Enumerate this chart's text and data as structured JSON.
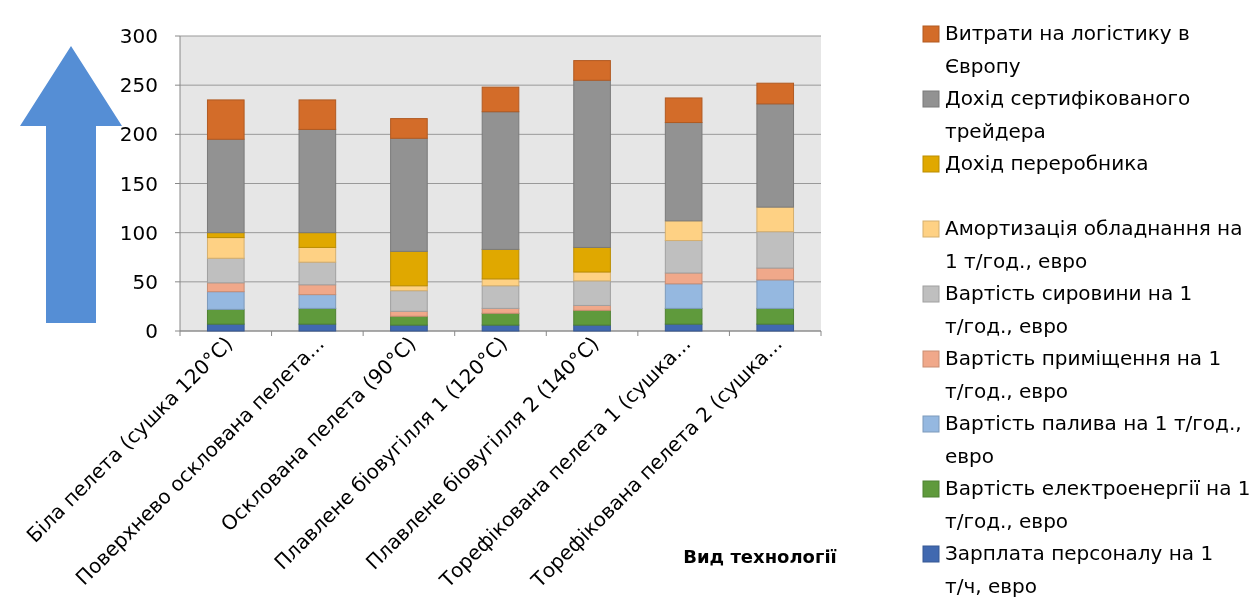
{
  "chart_data": {
    "type": "bar",
    "stacked": true,
    "xlabel": "Вид технології",
    "categories": [
      "Біла пелета (сушка 120°C)",
      "Поверхнево осклована пелета...",
      "Осклована пелета (90°C)",
      "Плавлене біовугілля 1 (120°C)",
      "Плавлене біовугілля 2 (140°C)",
      "Торефікована пелета 1 (сушка...",
      "Торефікована пелета 2 (сушка..."
    ],
    "series": [
      {
        "name": "Зарплата персоналу на 1 т/ч, евро",
        "color": "#4169b0",
        "values": [
          7,
          7,
          6,
          6,
          6,
          7,
          7
        ]
      },
      {
        "name": "Вартість електроенергії на 1 т/год., евро",
        "color": "#5f9a3c",
        "values": [
          15,
          16,
          9,
          12,
          15,
          16,
          16
        ]
      },
      {
        "name": "Вартість палива на 1 т/год., евро",
        "color": "#95b8e0",
        "values": [
          18,
          14,
          0,
          0,
          0,
          25,
          29
        ]
      },
      {
        "name": "Вартість приміщення на 1 т/год., евро",
        "color": "#f0a88a",
        "values": [
          9,
          10,
          5,
          5,
          5,
          11,
          12
        ]
      },
      {
        "name": "Вартість сировини на 1 т/год., евро",
        "color": "#bfbfbf",
        "values": [
          25,
          23,
          21,
          23,
          25,
          33,
          37
        ]
      },
      {
        "name": "Амортизація обладнання на 1 т/год., евро",
        "color": "#fed184",
        "values": [
          21,
          15,
          5,
          7,
          9,
          20,
          25
        ]
      },
      {
        "name": "Дохід переробника",
        "color": "#e0a800",
        "values": [
          5,
          15,
          35,
          30,
          25,
          0,
          0
        ]
      },
      {
        "name": "Дохід сертифікованого трейдера",
        "color": "#929292",
        "values": [
          95,
          105,
          115,
          140,
          170,
          100,
          105
        ]
      },
      {
        "name": "Витрати на логістику в Європу",
        "color": "#d36c29",
        "values": [
          40,
          30,
          20,
          25,
          20,
          25,
          21
        ]
      }
    ],
    "ylim": [
      0,
      300
    ],
    "yticks": [
      0,
      50,
      100,
      150,
      200,
      250,
      300
    ],
    "grid": "y",
    "legend": "right"
  }
}
